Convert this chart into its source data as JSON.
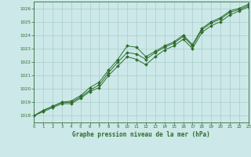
{
  "title": "Graphe pression niveau de la mer (hPa)",
  "bg_color": "#cce8e8",
  "grid_color": "#aacccc",
  "line_color": "#2d6e2d",
  "xlim": [
    0,
    23
  ],
  "ylim": [
    1017.5,
    1026.5
  ],
  "xticks": [
    0,
    1,
    2,
    3,
    4,
    5,
    6,
    7,
    8,
    9,
    10,
    11,
    12,
    13,
    14,
    15,
    16,
    17,
    18,
    19,
    20,
    21,
    22,
    23
  ],
  "yticks": [
    1018,
    1019,
    1020,
    1021,
    1022,
    1023,
    1024,
    1025,
    1026
  ],
  "series": [
    [
      1018.0,
      1018.4,
      1018.7,
      1019.0,
      1019.1,
      1019.4,
      1020.0,
      1020.3,
      1021.2,
      1022.0,
      1022.8,
      1023.1,
      1022.4,
      1022.8,
      1023.1,
      1023.4,
      1023.9,
      1023.2,
      1024.5,
      1025.0,
      1025.3,
      1025.8,
      1026.0,
      1026.2
    ],
    [
      1018.0,
      1018.4,
      1018.7,
      1019.0,
      1019.1,
      1019.4,
      1020.0,
      1020.3,
      1021.2,
      1022.0,
      1022.8,
      1022.8,
      1022.4,
      1022.8,
      1023.1,
      1023.4,
      1023.9,
      1023.2,
      1024.5,
      1025.0,
      1025.3,
      1025.8,
      1026.0,
      1026.2
    ],
    [
      1018.0,
      1018.4,
      1018.7,
      1019.0,
      1019.0,
      1019.4,
      1019.9,
      1020.2,
      1021.1,
      1021.8,
      1022.3,
      1022.6,
      1022.1,
      1022.6,
      1023.0,
      1023.3,
      1023.8,
      1023.1,
      1024.3,
      1024.8,
      1025.0,
      1025.6,
      1025.8,
      1026.1
    ]
  ],
  "series_bumped": [
    1018.0,
    1018.4,
    1018.7,
    1019.0,
    1019.1,
    1019.5,
    1020.1,
    1020.5,
    1021.4,
    1022.2,
    1023.2,
    1023.0,
    1022.3,
    1022.8,
    1023.1,
    1023.4,
    1023.9,
    1023.2,
    1024.5,
    1025.0,
    1025.3,
    1025.8,
    1026.0,
    1026.3
  ]
}
